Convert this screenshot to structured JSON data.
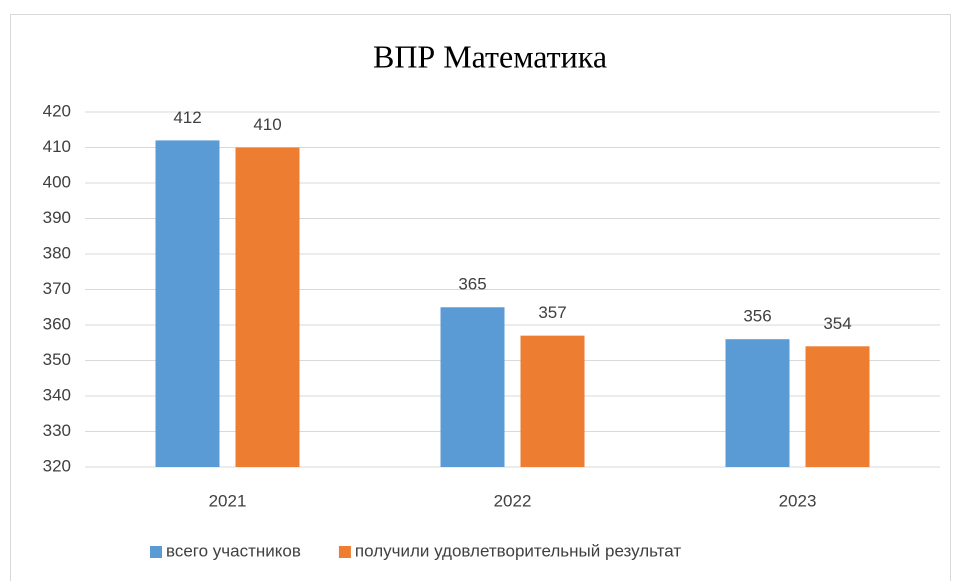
{
  "chart_data": {
    "type": "bar",
    "title": "ВПР Математика",
    "categories": [
      "2021",
      "2022",
      "2023"
    ],
    "series": [
      {
        "name": "всего участников",
        "color": "#5b9bd5",
        "values": [
          412,
          365,
          356
        ]
      },
      {
        "name": "получили удовлетворительный результат",
        "color": "#ed7d31",
        "values": [
          410,
          357,
          354
        ]
      }
    ],
    "ylim": [
      320,
      420
    ],
    "yticks": [
      320,
      330,
      340,
      350,
      360,
      370,
      380,
      390,
      400,
      410,
      420
    ],
    "grid": true,
    "legend": "bottom"
  }
}
